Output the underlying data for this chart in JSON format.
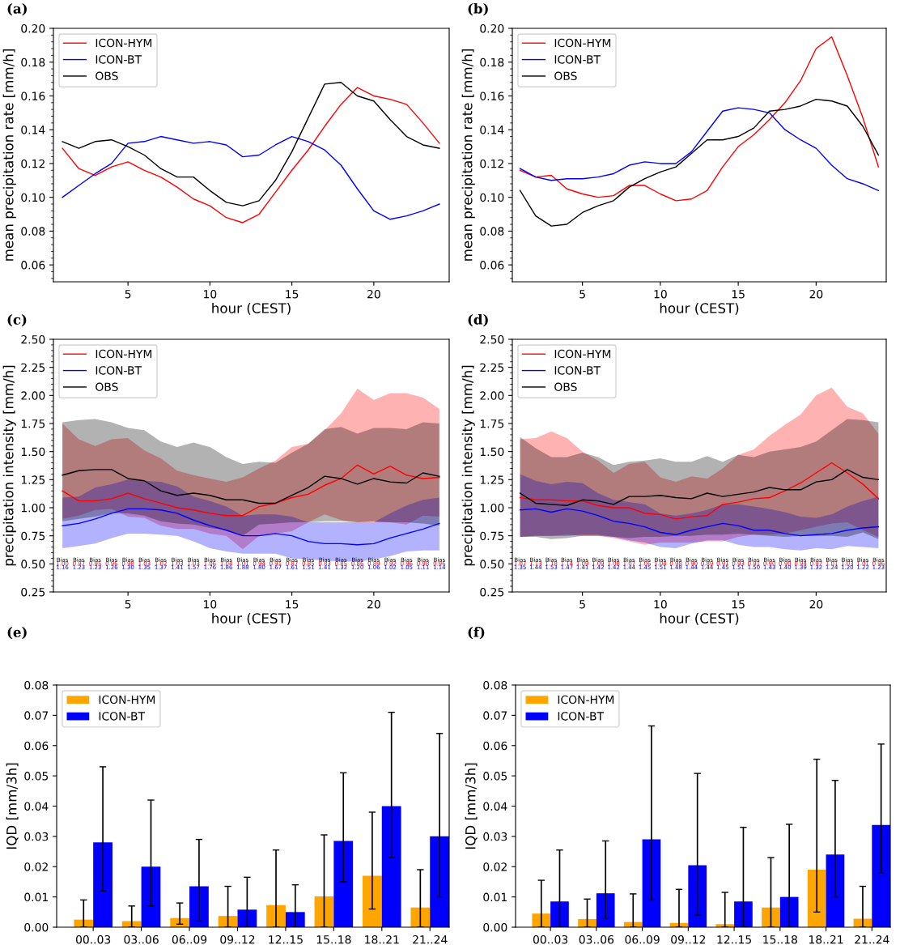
{
  "chart_data": [
    {
      "type": "line",
      "title": "(a)",
      "xlabel": "hour (CEST)",
      "ylabel": "mean precipitation rate [mm/h]",
      "legend": "top left",
      "grid": false,
      "x": [
        1,
        2,
        3,
        4,
        5,
        6,
        7,
        8,
        9,
        10,
        11,
        12,
        13,
        14,
        15,
        16,
        17,
        18,
        19,
        20,
        21,
        22,
        23,
        24
      ],
      "xlim": [
        0.45,
        24.6
      ],
      "xticks": [
        5,
        10,
        15,
        20
      ],
      "ylim": [
        0.05,
        0.2
      ],
      "yticks": [
        {
          "value": 0.06,
          "label": "0.06"
        },
        {
          "value": 0.08,
          "label": "0.08"
        },
        {
          "value": 0.1,
          "label": "0.10"
        },
        {
          "value": 0.12,
          "label": "0.12"
        },
        {
          "value": 0.14,
          "label": "0.14"
        },
        {
          "value": 0.16,
          "label": "0.16"
        },
        {
          "value": 0.18,
          "label": "0.18"
        },
        {
          "value": 0.2,
          "label": "0.20"
        }
      ],
      "series": [
        {
          "name": "ICON-HYM",
          "color": "#ff0000",
          "values": [
            0.129,
            0.117,
            0.113,
            0.118,
            0.121,
            0.116,
            0.112,
            0.106,
            0.099,
            0.095,
            0.088,
            0.085,
            0.09,
            0.103,
            0.116,
            0.128,
            0.142,
            0.155,
            0.165,
            0.16,
            0.158,
            0.155,
            0.144,
            0.132
          ]
        },
        {
          "name": "ICON-BT",
          "color": "#0000ff",
          "values": [
            0.1,
            0.107,
            0.114,
            0.12,
            0.132,
            0.133,
            0.136,
            0.134,
            0.132,
            0.133,
            0.131,
            0.124,
            0.125,
            0.131,
            0.136,
            0.133,
            0.128,
            0.119,
            0.105,
            0.092,
            0.087,
            0.089,
            0.092,
            0.096
          ]
        },
        {
          "name": "OBS",
          "color": "#000000",
          "values": [
            0.133,
            0.129,
            0.133,
            0.134,
            0.13,
            0.125,
            0.117,
            0.112,
            0.112,
            0.104,
            0.097,
            0.095,
            0.098,
            0.11,
            0.127,
            0.147,
            0.167,
            0.168,
            0.16,
            0.157,
            0.146,
            0.136,
            0.131,
            0.129
          ]
        }
      ]
    },
    {
      "type": "line",
      "title": "(b)",
      "xlabel": "hour (CEST)",
      "ylabel": "mean precipitation rate [mm/h]",
      "legend": "top left",
      "grid": false,
      "x": [
        1,
        2,
        3,
        4,
        5,
        6,
        7,
        8,
        9,
        10,
        11,
        12,
        13,
        14,
        15,
        16,
        17,
        18,
        19,
        20,
        21,
        22,
        23,
        24
      ],
      "xlim": [
        0.5,
        24.5
      ],
      "xticks": [
        5,
        10,
        15,
        20
      ],
      "ylim": [
        0.05,
        0.2
      ],
      "yticks": [
        {
          "value": 0.06,
          "label": "0.06"
        },
        {
          "value": 0.08,
          "label": "0.08"
        },
        {
          "value": 0.1,
          "label": "0.10"
        },
        {
          "value": 0.12,
          "label": "0.12"
        },
        {
          "value": 0.14,
          "label": "0.14"
        },
        {
          "value": 0.16,
          "label": "0.16"
        },
        {
          "value": 0.18,
          "label": "0.18"
        },
        {
          "value": 0.2,
          "label": "0.20"
        }
      ],
      "series": [
        {
          "name": "ICON-HYM",
          "color": "#ff0000",
          "values": [
            0.116,
            0.112,
            0.113,
            0.105,
            0.102,
            0.1,
            0.101,
            0.107,
            0.107,
            0.102,
            0.098,
            0.099,
            0.104,
            0.118,
            0.13,
            0.137,
            0.146,
            0.156,
            0.169,
            0.188,
            0.195,
            0.172,
            0.147,
            0.118
          ]
        },
        {
          "name": "ICON-BT",
          "color": "#0000ff",
          "values": [
            0.117,
            0.112,
            0.11,
            0.111,
            0.111,
            0.112,
            0.114,
            0.119,
            0.121,
            0.12,
            0.12,
            0.127,
            0.139,
            0.151,
            0.153,
            0.152,
            0.15,
            0.14,
            0.134,
            0.129,
            0.119,
            0.111,
            0.108,
            0.104
          ]
        },
        {
          "name": "OBS",
          "color": "#000000",
          "values": [
            0.104,
            0.089,
            0.083,
            0.084,
            0.091,
            0.095,
            0.098,
            0.106,
            0.111,
            0.115,
            0.118,
            0.126,
            0.134,
            0.134,
            0.136,
            0.141,
            0.151,
            0.152,
            0.154,
            0.158,
            0.157,
            0.154,
            0.142,
            0.125
          ]
        }
      ]
    },
    {
      "type": "line",
      "title": "(c)",
      "xlabel": "hour (CEST)",
      "ylabel": "precipitation intensity [mm/h]",
      "legend": "top left",
      "grid": false,
      "x": [
        1,
        2,
        3,
        4,
        5,
        6,
        7,
        8,
        9,
        10,
        11,
        12,
        13,
        14,
        15,
        16,
        17,
        18,
        19,
        20,
        21,
        22,
        23,
        24
      ],
      "xlim": [
        0.45,
        24.6
      ],
      "xticks": [
        5,
        10,
        15,
        20
      ],
      "ylim": [
        0.25,
        2.5
      ],
      "yticks": [
        {
          "value": 0.25,
          "label": "0.25"
        },
        {
          "value": 0.5,
          "label": "0.50"
        },
        {
          "value": 0.75,
          "label": "0.75"
        },
        {
          "value": 1.0,
          "label": "1.00"
        },
        {
          "value": 1.25,
          "label": "1.25"
        },
        {
          "value": 1.5,
          "label": "1.50"
        },
        {
          "value": 1.75,
          "label": "1.75"
        },
        {
          "value": 2.0,
          "label": "2.00"
        },
        {
          "value": 2.25,
          "label": "2.25"
        },
        {
          "value": 2.5,
          "label": "2.50"
        }
      ],
      "series": [
        {
          "name": "ICON-HYM",
          "color": "#ff0000",
          "values": [
            1.15,
            1.06,
            1.06,
            1.08,
            1.13,
            1.08,
            1.04,
            1.0,
            0.98,
            0.95,
            0.93,
            0.93,
            1.01,
            1.04,
            1.09,
            1.12,
            1.2,
            1.26,
            1.38,
            1.3,
            1.37,
            1.29,
            1.26,
            1.27
          ],
          "lower": [
            0.9,
            0.93,
            0.98,
            0.99,
            0.92,
            0.91,
            0.84,
            0.81,
            0.81,
            0.77,
            0.75,
            0.63,
            0.75,
            0.77,
            0.79,
            0.87,
            0.94,
            0.89,
            0.87,
            0.87,
            0.87,
            0.85,
            0.93,
            0.92
          ],
          "upper": [
            1.75,
            1.61,
            1.55,
            1.61,
            1.62,
            1.51,
            1.44,
            1.33,
            1.29,
            1.26,
            1.23,
            1.27,
            1.35,
            1.42,
            1.54,
            1.57,
            1.69,
            1.84,
            2.06,
            1.96,
            2.02,
            2.02,
            1.98,
            1.88
          ]
        },
        {
          "name": "ICON-BT",
          "color": "#0000ff",
          "values": [
            0.84,
            0.86,
            0.9,
            0.95,
            0.99,
            0.99,
            0.98,
            0.95,
            0.89,
            0.84,
            0.8,
            0.75,
            0.75,
            0.77,
            0.75,
            0.7,
            0.68,
            0.68,
            0.67,
            0.68,
            0.73,
            0.77,
            0.81,
            0.86
          ],
          "lower": [
            0.64,
            0.66,
            0.68,
            0.73,
            0.77,
            0.77,
            0.76,
            0.75,
            0.7,
            0.64,
            0.61,
            0.59,
            0.59,
            0.59,
            0.55,
            0.54,
            0.53,
            0.52,
            0.52,
            0.54,
            0.57,
            0.61,
            0.62,
            0.62
          ],
          "upper": [
            1.09,
            1.1,
            1.18,
            1.21,
            1.25,
            1.24,
            1.23,
            1.19,
            1.1,
            1.06,
            1.01,
            0.93,
            0.94,
            0.94,
            0.92,
            0.87,
            0.87,
            0.87,
            0.87,
            0.87,
            0.95,
            1.02,
            1.07,
            1.09
          ]
        },
        {
          "name": "OBS",
          "color": "#000000",
          "values": [
            1.29,
            1.33,
            1.34,
            1.34,
            1.26,
            1.24,
            1.15,
            1.11,
            1.13,
            1.11,
            1.07,
            1.07,
            1.04,
            1.04,
            1.11,
            1.18,
            1.28,
            1.26,
            1.21,
            1.26,
            1.23,
            1.22,
            1.31,
            1.28
          ],
          "lower": [
            0.88,
            0.9,
            0.92,
            0.95,
            0.95,
            0.93,
            0.88,
            0.86,
            0.85,
            0.82,
            0.8,
            0.75,
            0.85,
            0.86,
            0.87,
            0.87,
            0.88,
            0.88,
            0.87,
            0.88,
            0.87,
            0.87,
            0.86,
            0.84
          ],
          "upper": [
            1.76,
            1.78,
            1.79,
            1.76,
            1.71,
            1.69,
            1.59,
            1.54,
            1.58,
            1.54,
            1.45,
            1.39,
            1.41,
            1.4,
            1.49,
            1.57,
            1.7,
            1.72,
            1.66,
            1.71,
            1.71,
            1.7,
            1.76,
            1.75
          ]
        }
      ],
      "annotations": [
        "Bias",
        "1.00",
        "1.16",
        "Bias",
        "0.97",
        "1.23",
        "Bias",
        "0.95",
        "1.23",
        "Bias",
        "0.96",
        "1.26",
        "Bias",
        "0.98",
        "1.30",
        "Bias",
        "1.03",
        "1.35",
        "Bias",
        "1.02",
        "1.37",
        "Bias",
        "1.03",
        "1.41",
        "Bias",
        "1.03",
        "1.57",
        "Bias",
        "1.06",
        "1.76",
        "Bias",
        "1.04",
        "1.86",
        "Bias",
        "1.01",
        "1.88",
        "Bias",
        "0.94",
        "1.80",
        "Bias",
        "0.91",
        "1.67",
        "Bias",
        "0.87",
        "1.61",
        "Bias",
        "0.85",
        "1.51",
        "Bias",
        "0.83",
        "1.41",
        "Bias",
        "0.85",
        "1.32",
        "Bias",
        "0.86",
        "1.20",
        "Bias",
        "0.89",
        "1.06",
        "Bias",
        "0.92",
        "1.02",
        "Bias",
        "0.96",
        "1.05",
        "Bias",
        "0.98",
        "1.11",
        "Bias",
        "0.96",
        "1.14"
      ]
    },
    {
      "type": "line",
      "title": "(d)",
      "xlabel": "hour (CEST)",
      "ylabel": "precipitation intensity [mm/h]",
      "legend": "top left",
      "grid": false,
      "x": [
        1,
        2,
        3,
        4,
        5,
        6,
        7,
        8,
        9,
        10,
        11,
        12,
        13,
        14,
        15,
        16,
        17,
        18,
        19,
        20,
        21,
        22,
        23,
        24
      ],
      "xlim": [
        0.5,
        24.5
      ],
      "xticks": [
        5,
        10,
        15,
        20
      ],
      "ylim": [
        0.25,
        2.5
      ],
      "yticks": [
        {
          "value": 0.25,
          "label": "0.25"
        },
        {
          "value": 0.5,
          "label": "0.50"
        },
        {
          "value": 0.75,
          "label": "0.75"
        },
        {
          "value": 1.0,
          "label": "1.00"
        },
        {
          "value": 1.25,
          "label": "1.25"
        },
        {
          "value": 1.5,
          "label": "1.50"
        },
        {
          "value": 1.75,
          "label": "1.75"
        },
        {
          "value": 2.0,
          "label": "2.00"
        },
        {
          "value": 2.25,
          "label": "2.25"
        },
        {
          "value": 2.5,
          "label": "2.50"
        }
      ],
      "series": [
        {
          "name": "ICON-HYM",
          "color": "#ff0000",
          "values": [
            1.09,
            1.07,
            1.07,
            1.06,
            1.06,
            1.02,
            1.0,
            1.0,
            0.95,
            0.94,
            0.9,
            0.92,
            0.93,
            1.03,
            1.05,
            1.08,
            1.09,
            1.15,
            1.22,
            1.31,
            1.4,
            1.31,
            1.21,
            1.08
          ],
          "lower": [
            0.74,
            0.75,
            0.75,
            0.76,
            0.75,
            0.75,
            0.73,
            0.7,
            0.67,
            0.69,
            0.69,
            0.69,
            0.7,
            0.7,
            0.74,
            0.76,
            0.76,
            0.77,
            0.8,
            0.83,
            0.86,
            0.87,
            0.8,
            0.74
          ],
          "upper": [
            1.61,
            1.62,
            1.68,
            1.62,
            1.5,
            1.42,
            1.31,
            1.39,
            1.41,
            1.27,
            1.23,
            1.28,
            1.26,
            1.35,
            1.47,
            1.52,
            1.64,
            1.74,
            1.83,
            2.0,
            2.07,
            1.9,
            1.84,
            1.66
          ]
        },
        {
          "name": "ICON-BT",
          "color": "#0000ff",
          "values": [
            0.98,
            0.99,
            0.96,
            0.99,
            0.97,
            0.93,
            0.88,
            0.86,
            0.83,
            0.78,
            0.76,
            0.8,
            0.83,
            0.86,
            0.84,
            0.8,
            0.8,
            0.77,
            0.75,
            0.76,
            0.77,
            0.8,
            0.82,
            0.83
          ],
          "lower": [
            0.74,
            0.75,
            0.75,
            0.75,
            0.76,
            0.76,
            0.74,
            0.71,
            0.69,
            0.65,
            0.64,
            0.68,
            0.71,
            0.71,
            0.67,
            0.65,
            0.65,
            0.63,
            0.62,
            0.64,
            0.63,
            0.66,
            0.65,
            0.64
          ],
          "upper": [
            1.3,
            1.24,
            1.21,
            1.23,
            1.22,
            1.13,
            1.07,
            1.05,
            1.03,
            0.95,
            0.93,
            0.95,
            0.98,
            1.03,
            1.03,
            1.01,
            0.99,
            0.96,
            0.92,
            0.91,
            0.94,
            1.01,
            1.06,
            1.1
          ]
        },
        {
          "name": "OBS",
          "color": "#000000",
          "values": [
            1.13,
            1.04,
            1.03,
            1.02,
            1.07,
            1.06,
            1.03,
            1.1,
            1.1,
            1.11,
            1.09,
            1.08,
            1.13,
            1.1,
            1.12,
            1.14,
            1.18,
            1.16,
            1.16,
            1.23,
            1.25,
            1.34,
            1.27,
            1.25
          ],
          "lower": [
            0.74,
            0.74,
            0.72,
            0.73,
            0.75,
            0.75,
            0.74,
            0.73,
            0.74,
            0.74,
            0.75,
            0.75,
            0.76,
            0.76,
            0.77,
            0.76,
            0.75,
            0.74,
            0.75,
            0.75,
            0.75,
            0.74,
            0.78,
            0.72
          ],
          "upper": [
            1.63,
            1.53,
            1.45,
            1.45,
            1.49,
            1.45,
            1.38,
            1.41,
            1.42,
            1.44,
            1.41,
            1.41,
            1.46,
            1.41,
            1.47,
            1.45,
            1.5,
            1.52,
            1.54,
            1.59,
            1.69,
            1.79,
            1.78,
            1.76
          ]
        }
      ],
      "annotations": [
        "Bias",
        "1.07",
        "1.35",
        "Bias",
        "1.13",
        "1.44",
        "Bias",
        "1.18",
        "1.53",
        "Bias",
        "1.14",
        "1.47",
        "Bias",
        "1.09",
        "1.41",
        "Bias",
        "1.09",
        "1.42",
        "Bias",
        "1.08",
        "1.42",
        "Bias",
        "1.07",
        "1.44",
        "Bias",
        "1.06",
        "1.45",
        "Bias",
        "1.04",
        "1.51",
        "Bias",
        "0.98",
        "1.48",
        "Bias",
        "0.90",
        "1.44",
        "Bias",
        "0.89",
        "1.44",
        "Bias",
        "0.91",
        "1.45",
        "Bias",
        "0.93",
        "1.51",
        "Bias",
        "0.91",
        "1.50",
        "Bias",
        "0.90",
        "1.43",
        "Bias",
        "0.90",
        "1.40",
        "Bias",
        "0.94",
        "1.39",
        "Bias",
        "0.97",
        "1.32",
        "Bias",
        "1.01",
        "1.24",
        "Bias",
        "1.03",
        "1.20",
        "Bias",
        "1.01",
        "1.22",
        "Bias",
        "0.96",
        "1.23"
      ]
    },
    {
      "type": "bar",
      "title": "(e)",
      "ylabel": "IQD [mm/3h]",
      "legend": "top left",
      "grid": false,
      "categories": [
        "00..03",
        "03..06",
        "06..09",
        "09..12",
        "12..15",
        "15..18",
        "18..21",
        "21..24"
      ],
      "ylim": [
        0,
        0.08
      ],
      "yticks": [
        {
          "value": 0,
          "label": "0.00"
        },
        {
          "value": 0.01,
          "label": "0.01"
        },
        {
          "value": 0.02,
          "label": "0.02"
        },
        {
          "value": 0.03,
          "label": "0.03"
        },
        {
          "value": 0.04,
          "label": "0.04"
        },
        {
          "value": 0.05,
          "label": "0.05"
        },
        {
          "value": 0.06,
          "label": "0.06"
        },
        {
          "value": 0.07,
          "label": "0.07"
        },
        {
          "value": 0.08,
          "label": "0.08"
        }
      ],
      "series": [
        {
          "name": "ICON-HYM",
          "color": "#ffa500",
          "values": [
            0.0025,
            0.002,
            0.003,
            0.0037,
            0.0073,
            0.0102,
            0.017,
            0.0065
          ],
          "errors": [
            [
              0,
              0.009
            ],
            [
              0,
              0.007
            ],
            [
              0.001,
              0.008
            ],
            [
              0,
              0.0135
            ],
            [
              0,
              0.0255
            ],
            [
              0,
              0.0305
            ],
            [
              0.006,
              0.038
            ],
            [
              0,
              0.019
            ]
          ]
        },
        {
          "name": "ICON-BT",
          "color": "#0000ff",
          "values": [
            0.028,
            0.02,
            0.0135,
            0.0058,
            0.005,
            0.0285,
            0.04,
            0.03
          ],
          "errors": [
            [
              0.012,
              0.053
            ],
            [
              0.007,
              0.042
            ],
            [
              0.002,
              0.029
            ],
            [
              0,
              0.0165
            ],
            [
              0,
              0.014
            ],
            [
              0.015,
              0.051
            ],
            [
              0.023,
              0.071
            ],
            [
              0.01,
              0.064
            ]
          ]
        }
      ]
    },
    {
      "type": "bar",
      "title": "(f)",
      "ylabel": "IQD [mm/3h]",
      "legend": "top left",
      "grid": false,
      "categories": [
        "00..03",
        "03..06",
        "06..09",
        "09..12",
        "12..15",
        "15..18",
        "18..21",
        "21..24"
      ],
      "ylim": [
        0,
        0.08
      ],
      "yticks": [
        {
          "value": 0,
          "label": "0.00"
        },
        {
          "value": 0.01,
          "label": "0.01"
        },
        {
          "value": 0.02,
          "label": "0.02"
        },
        {
          "value": 0.03,
          "label": "0.03"
        },
        {
          "value": 0.04,
          "label": "0.04"
        },
        {
          "value": 0.05,
          "label": "0.05"
        },
        {
          "value": 0.06,
          "label": "0.06"
        },
        {
          "value": 0.07,
          "label": "0.07"
        },
        {
          "value": 0.08,
          "label": "0.08"
        }
      ],
      "series": [
        {
          "name": "ICON-HYM",
          "color": "#ffa500",
          "values": [
            0.0045,
            0.0027,
            0.0017,
            0.0014,
            0.001,
            0.0065,
            0.019,
            0.0028
          ],
          "errors": [
            [
              0,
              0.0155
            ],
            [
              0,
              0.0093
            ],
            [
              0,
              0.011
            ],
            [
              0,
              0.0125
            ],
            [
              0,
              0.0115
            ],
            [
              0,
              0.023
            ],
            [
              0.005,
              0.0555
            ],
            [
              0,
              0.0135
            ]
          ]
        },
        {
          "name": "ICON-BT",
          "color": "#0000ff",
          "values": [
            0.0085,
            0.0112,
            0.029,
            0.0205,
            0.0085,
            0.01,
            0.024,
            0.0338
          ],
          "errors": [
            [
              0,
              0.0255
            ],
            [
              0.003,
              0.0285
            ],
            [
              0.009,
              0.0665
            ],
            [
              0.004,
              0.0508
            ],
            [
              0,
              0.033
            ],
            [
              0,
              0.034
            ],
            [
              0.01,
              0.0485
            ],
            [
              0.018,
              0.0605
            ]
          ]
        }
      ]
    }
  ]
}
